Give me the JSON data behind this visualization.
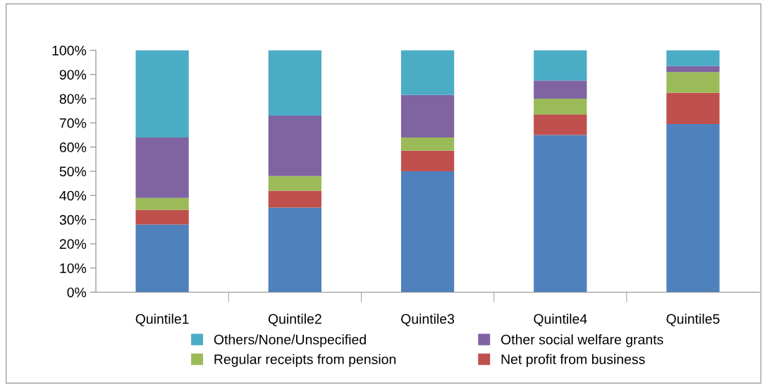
{
  "chart_data": {
    "type": "bar",
    "stacked": true,
    "categories": [
      "Quintile1",
      "Quintile2",
      "Quintile3",
      "Quintile4",
      "Quintile5"
    ],
    "series": [
      {
        "color": "#4f81bd",
        "values": [
          28,
          35,
          50,
          65,
          69.5
        ]
      },
      {
        "name": "Net profit from business",
        "color": "#c0504d",
        "values": [
          6,
          7,
          8.5,
          8.5,
          13
        ]
      },
      {
        "name": "Regular receipts from pension",
        "color": "#9bbb59",
        "values": [
          5,
          6,
          5.5,
          6.5,
          8.5
        ]
      },
      {
        "name": "Other social welfare grants",
        "color": "#8064a2",
        "values": [
          25,
          25,
          17.5,
          7.5,
          2.5
        ]
      },
      {
        "name": "Others/None/Unspecified",
        "color": "#4bacc6",
        "values": [
          36,
          27,
          18.5,
          12.5,
          6.5
        ]
      }
    ],
    "ylim": [
      0,
      100
    ],
    "yticks": [
      {
        "value": 0,
        "label": "0%"
      },
      {
        "value": 10,
        "label": "10%"
      },
      {
        "value": 20,
        "label": "20%"
      },
      {
        "value": 30,
        "label": "30%"
      },
      {
        "value": 40,
        "label": "40%"
      },
      {
        "value": 50,
        "label": "50%"
      },
      {
        "value": 60,
        "label": "60%"
      },
      {
        "value": 70,
        "label": "70%"
      },
      {
        "value": 80,
        "label": "80%"
      },
      {
        "value": 90,
        "label": "90%"
      },
      {
        "value": 100,
        "label": "100%"
      }
    ],
    "grid": false,
    "legend": "bottom"
  }
}
